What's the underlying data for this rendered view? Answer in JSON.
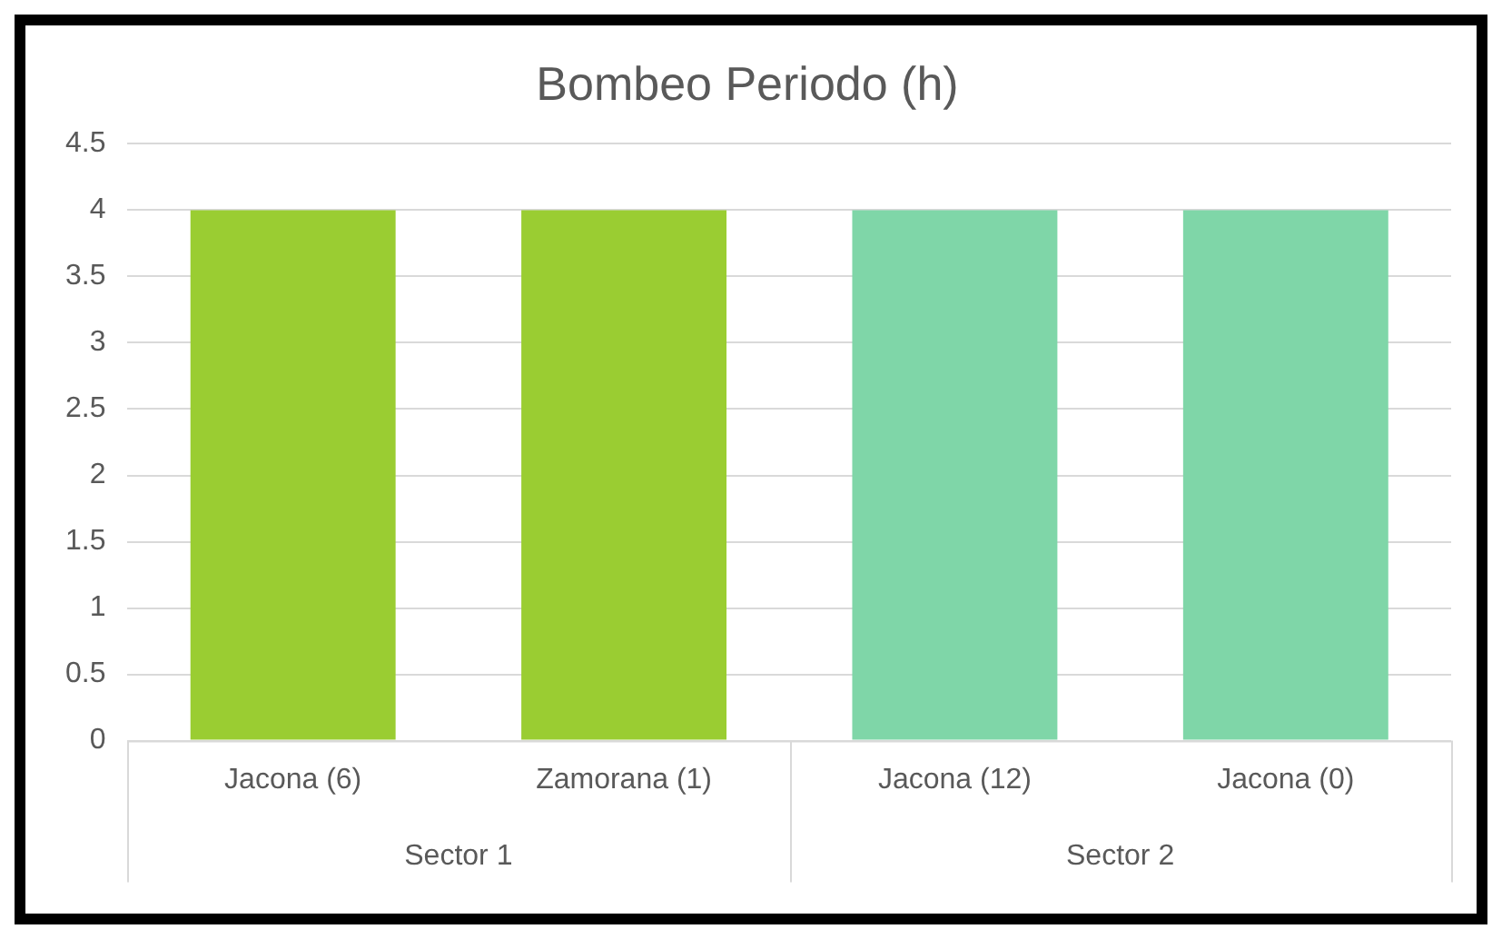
{
  "chart_data": {
    "type": "bar",
    "title": "Bombeo Periodo (h)",
    "categories": [
      "Jacona (6)",
      "Zamorana (1)",
      "Jacona (12)",
      "Jacona (0)"
    ],
    "values": [
      4,
      4,
      4,
      4
    ],
    "colors": [
      "#9acd32",
      "#9acd32",
      "#7fd6a8",
      "#7fd6a8"
    ],
    "ylim": [
      0,
      4.5
    ],
    "yticks": [
      0,
      0.5,
      1,
      1.5,
      2,
      2.5,
      3,
      3.5,
      4,
      4.5
    ],
    "grid": "y",
    "annotations": [
      "Sector 1",
      "Sector 2"
    ]
  }
}
